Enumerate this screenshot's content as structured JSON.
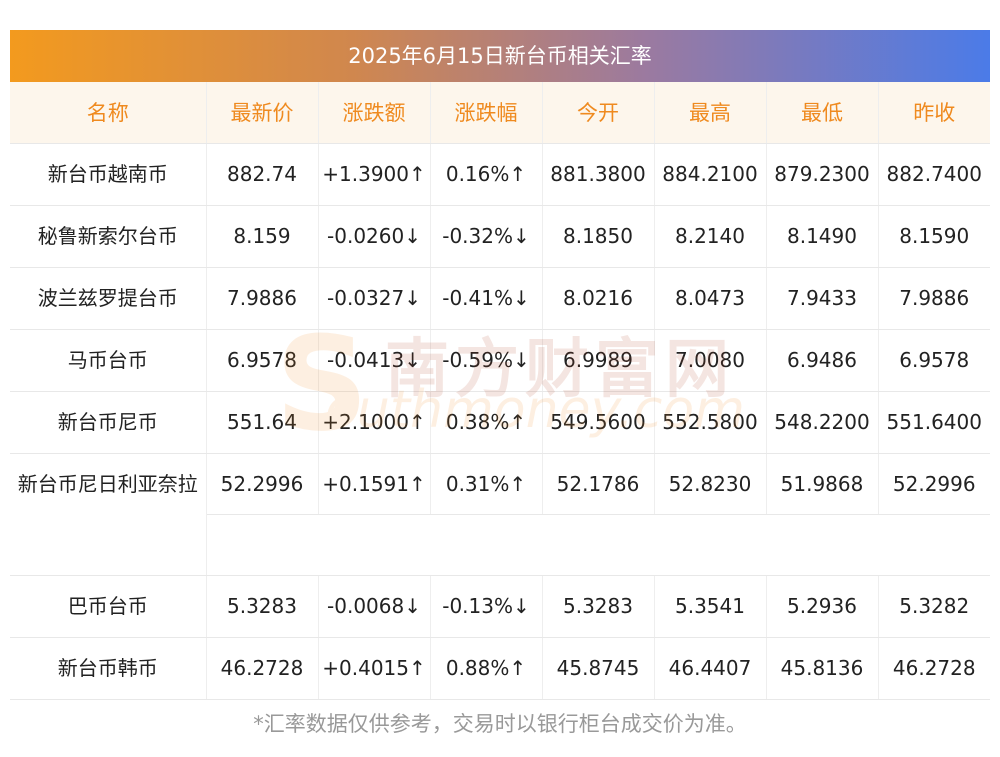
{
  "title": "2025年6月15日新台币相关汇率",
  "headers": [
    "名称",
    "最新价",
    "涨跌额",
    "涨跌幅",
    "今开",
    "最高",
    "最低",
    "昨收"
  ],
  "rows": [
    {
      "name": "新台币越南币",
      "latest": "882.74",
      "change": "+1.3900↑",
      "pct": "0.16%↑",
      "open": "881.3800",
      "high": "884.2100",
      "low": "879.2300",
      "prev": "882.7400",
      "dir": "up"
    },
    {
      "name": "秘鲁新索尔台币",
      "latest": "8.159",
      "change": "-0.0260↓",
      "pct": "-0.32%↓",
      "open": "8.1850",
      "high": "8.2140",
      "low": "8.1490",
      "prev": "8.1590",
      "dir": "down"
    },
    {
      "name": "波兰兹罗提台币",
      "latest": "7.9886",
      "change": "-0.0327↓",
      "pct": "-0.41%↓",
      "open": "8.0216",
      "high": "8.0473",
      "low": "7.9433",
      "prev": "7.9886",
      "dir": "down"
    },
    {
      "name": "马币台币",
      "latest": "6.9578",
      "change": "-0.0413↓",
      "pct": "-0.59%↓",
      "open": "6.9989",
      "high": "7.0080",
      "low": "6.9486",
      "prev": "6.9578",
      "dir": "down"
    },
    {
      "name": "新台币尼币",
      "latest": "551.64",
      "change": "+2.1000↑",
      "pct": "0.38%↑",
      "open": "549.5600",
      "high": "552.5800",
      "low": "548.2200",
      "prev": "551.6400",
      "dir": "up"
    },
    {
      "name": "新台币尼日利亚奈拉",
      "latest": "52.2996",
      "change": "+0.1591↑",
      "pct": "0.31%↑",
      "open": "52.1786",
      "high": "52.8230",
      "low": "51.9868",
      "prev": "52.2996",
      "dir": "up"
    },
    {
      "name": "巴币台币",
      "latest": "5.3283",
      "change": "-0.0068↓",
      "pct": "-0.13%↓",
      "open": "5.3283",
      "high": "5.3541",
      "low": "5.2936",
      "prev": "5.3282",
      "dir": "down"
    },
    {
      "name": "新台币韩币",
      "latest": "46.2728",
      "change": "+0.4015↑",
      "pct": "0.88%↑",
      "open": "45.8745",
      "high": "46.4407",
      "low": "45.8136",
      "prev": "46.2728",
      "dir": "up"
    }
  ],
  "watermark": {
    "main": "南方财富网",
    "sub": "outhmoney.com",
    "initial": "S"
  },
  "footnote": "*汇率数据仅供参考，交易时以银行柜台成交价为准。",
  "colors": {
    "up": "#ee1b1b",
    "down": "#1f8c1f",
    "header_text": "#ef8a1f",
    "header_bg": "#fdf6ec"
  }
}
